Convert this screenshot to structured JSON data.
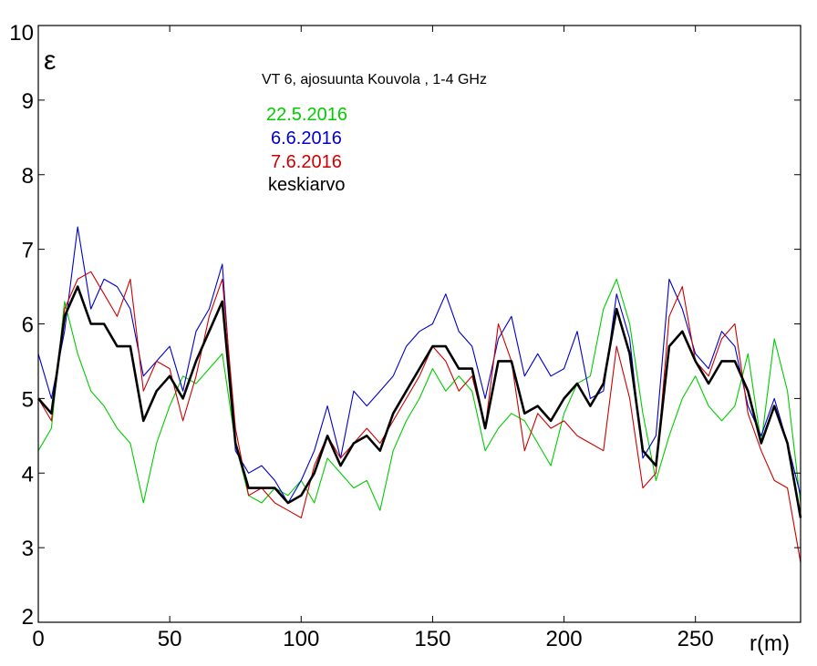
{
  "chart_data": {
    "type": "line",
    "title": "VT 6, ajosuunta Kouvola , 1-4 GHz",
    "xlabel": "r(m)",
    "ylabel": "ε",
    "xlim": [
      0,
      290
    ],
    "ylim": [
      2,
      10
    ],
    "xticks": [
      0,
      50,
      100,
      150,
      200,
      250
    ],
    "yticks": [
      2,
      3,
      4,
      5,
      6,
      7,
      8,
      9,
      10
    ],
    "grid": false,
    "legend_position": "top-center",
    "series": [
      {
        "name": "22.5.2016",
        "color": "#00cc00",
        "x": [
          0,
          5,
          10,
          15,
          20,
          25,
          30,
          35,
          40,
          45,
          50,
          55,
          60,
          65,
          70,
          75,
          80,
          85,
          90,
          95,
          100,
          105,
          110,
          115,
          120,
          125,
          130,
          135,
          140,
          145,
          150,
          155,
          160,
          165,
          170,
          175,
          180,
          185,
          190,
          195,
          200,
          205,
          210,
          215,
          220,
          225,
          230,
          235,
          240,
          245,
          250,
          255,
          260,
          265,
          270,
          275,
          280,
          285,
          290
        ],
        "values": [
          4.3,
          4.6,
          6.3,
          5.6,
          5.1,
          4.9,
          4.6,
          4.4,
          3.6,
          4.4,
          4.9,
          5.3,
          5.2,
          5.4,
          5.6,
          4.4,
          3.7,
          3.6,
          3.8,
          3.7,
          3.9,
          3.6,
          4.2,
          4.0,
          3.8,
          3.9,
          3.5,
          4.3,
          4.7,
          5.0,
          5.4,
          5.1,
          5.3,
          5.1,
          4.3,
          4.6,
          4.8,
          4.7,
          4.4,
          4.1,
          4.8,
          5.2,
          5.3,
          6.2,
          6.6,
          6.0,
          4.8,
          3.9,
          4.5,
          5.0,
          5.3,
          4.9,
          4.7,
          4.9,
          5.6,
          4.4,
          5.8,
          5.1,
          3.6
        ]
      },
      {
        "name": "6.6.2016",
        "color": "#0000cc",
        "x": [
          0,
          5,
          10,
          15,
          20,
          25,
          30,
          35,
          40,
          45,
          50,
          55,
          60,
          65,
          70,
          75,
          80,
          85,
          90,
          95,
          100,
          105,
          110,
          115,
          120,
          125,
          130,
          135,
          140,
          145,
          150,
          155,
          160,
          165,
          170,
          175,
          180,
          185,
          190,
          195,
          200,
          205,
          210,
          215,
          220,
          225,
          230,
          235,
          240,
          245,
          250,
          255,
          260,
          265,
          270,
          275,
          280,
          285,
          290
        ],
        "values": [
          5.6,
          5.0,
          5.9,
          7.3,
          6.2,
          6.6,
          6.5,
          6.2,
          5.3,
          5.5,
          5.7,
          5.1,
          5.9,
          6.2,
          6.8,
          4.3,
          4.0,
          4.1,
          3.9,
          3.6,
          3.9,
          4.3,
          4.9,
          4.2,
          5.1,
          4.9,
          5.1,
          5.3,
          5.7,
          5.9,
          6.0,
          6.4,
          5.9,
          5.7,
          5.0,
          5.8,
          6.1,
          5.3,
          5.6,
          5.3,
          5.4,
          5.9,
          5.0,
          5.1,
          6.4,
          5.8,
          4.2,
          4.5,
          6.6,
          6.2,
          5.6,
          5.4,
          5.9,
          5.7,
          4.9,
          4.5,
          5.0,
          4.4,
          3.7
        ]
      },
      {
        "name": "7.6.2016",
        "color": "#cc0000",
        "x": [
          0,
          5,
          10,
          15,
          20,
          25,
          30,
          35,
          40,
          45,
          50,
          55,
          60,
          65,
          70,
          75,
          80,
          85,
          90,
          95,
          100,
          105,
          110,
          115,
          120,
          125,
          130,
          135,
          140,
          145,
          150,
          155,
          160,
          165,
          170,
          175,
          180,
          185,
          190,
          195,
          200,
          205,
          210,
          215,
          220,
          225,
          230,
          235,
          240,
          245,
          250,
          255,
          260,
          265,
          270,
          275,
          280,
          285,
          290
        ],
        "values": [
          5.0,
          4.7,
          6.2,
          6.6,
          6.7,
          6.4,
          6.1,
          6.6,
          5.1,
          5.5,
          5.4,
          4.7,
          5.3,
          6.1,
          6.6,
          4.6,
          3.7,
          3.8,
          3.6,
          3.5,
          3.4,
          4.1,
          4.5,
          4.2,
          4.4,
          4.6,
          4.4,
          4.7,
          5.0,
          5.3,
          5.7,
          5.5,
          5.1,
          5.3,
          4.6,
          6.0,
          5.5,
          4.3,
          4.8,
          4.6,
          4.7,
          4.5,
          4.4,
          4.3,
          5.7,
          5.0,
          3.8,
          4.0,
          6.1,
          6.5,
          5.5,
          5.3,
          5.8,
          6.0,
          4.8,
          4.3,
          3.9,
          3.8,
          2.8
        ]
      },
      {
        "name": "keskiarvo",
        "color": "#000000",
        "x": [
          0,
          5,
          10,
          15,
          20,
          25,
          30,
          35,
          40,
          45,
          50,
          55,
          60,
          65,
          70,
          75,
          80,
          85,
          90,
          95,
          100,
          105,
          110,
          115,
          120,
          125,
          130,
          135,
          140,
          145,
          150,
          155,
          160,
          165,
          170,
          175,
          180,
          185,
          190,
          195,
          200,
          205,
          210,
          215,
          220,
          225,
          230,
          235,
          240,
          245,
          250,
          255,
          260,
          265,
          270,
          275,
          280,
          285,
          290
        ],
        "values": [
          5.0,
          4.8,
          6.1,
          6.5,
          6.0,
          6.0,
          5.7,
          5.7,
          4.7,
          5.1,
          5.3,
          5.0,
          5.5,
          5.9,
          6.3,
          4.4,
          3.8,
          3.8,
          3.8,
          3.6,
          3.7,
          4.0,
          4.5,
          4.1,
          4.4,
          4.5,
          4.3,
          4.8,
          5.1,
          5.4,
          5.7,
          5.7,
          5.4,
          5.4,
          4.6,
          5.5,
          5.5,
          4.8,
          4.9,
          4.7,
          5.0,
          5.2,
          4.9,
          5.2,
          6.2,
          5.6,
          4.3,
          4.1,
          5.7,
          5.9,
          5.5,
          5.2,
          5.5,
          5.5,
          5.1,
          4.4,
          4.9,
          4.4,
          3.4
        ]
      }
    ]
  }
}
